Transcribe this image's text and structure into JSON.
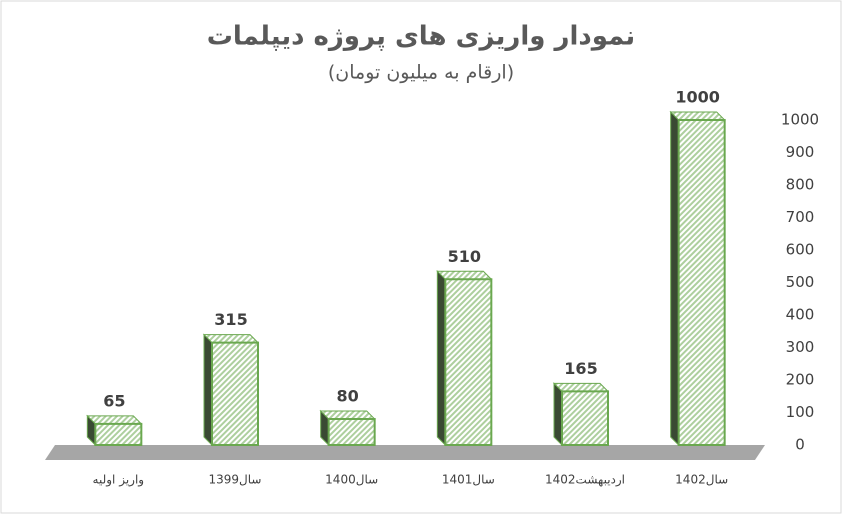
{
  "chart_data": {
    "type": "bar3d",
    "title": "نمودار واریزی های پروژه دیپلمات",
    "subtitle": "(ارقام به میلیون تومان)",
    "categories": [
      "واریز اولیه",
      "سال1399",
      "سال1400",
      "سال1401",
      "اردیبهشت1402",
      "سال1402"
    ],
    "values": [
      65,
      315,
      80,
      510,
      165,
      1000
    ],
    "color": "#6aa84f",
    "ylim": [
      0,
      1000
    ],
    "yticks": [
      0,
      100,
      200,
      300,
      400,
      500,
      600,
      700,
      800,
      900,
      1000
    ],
    "y_axis_side": "right"
  }
}
